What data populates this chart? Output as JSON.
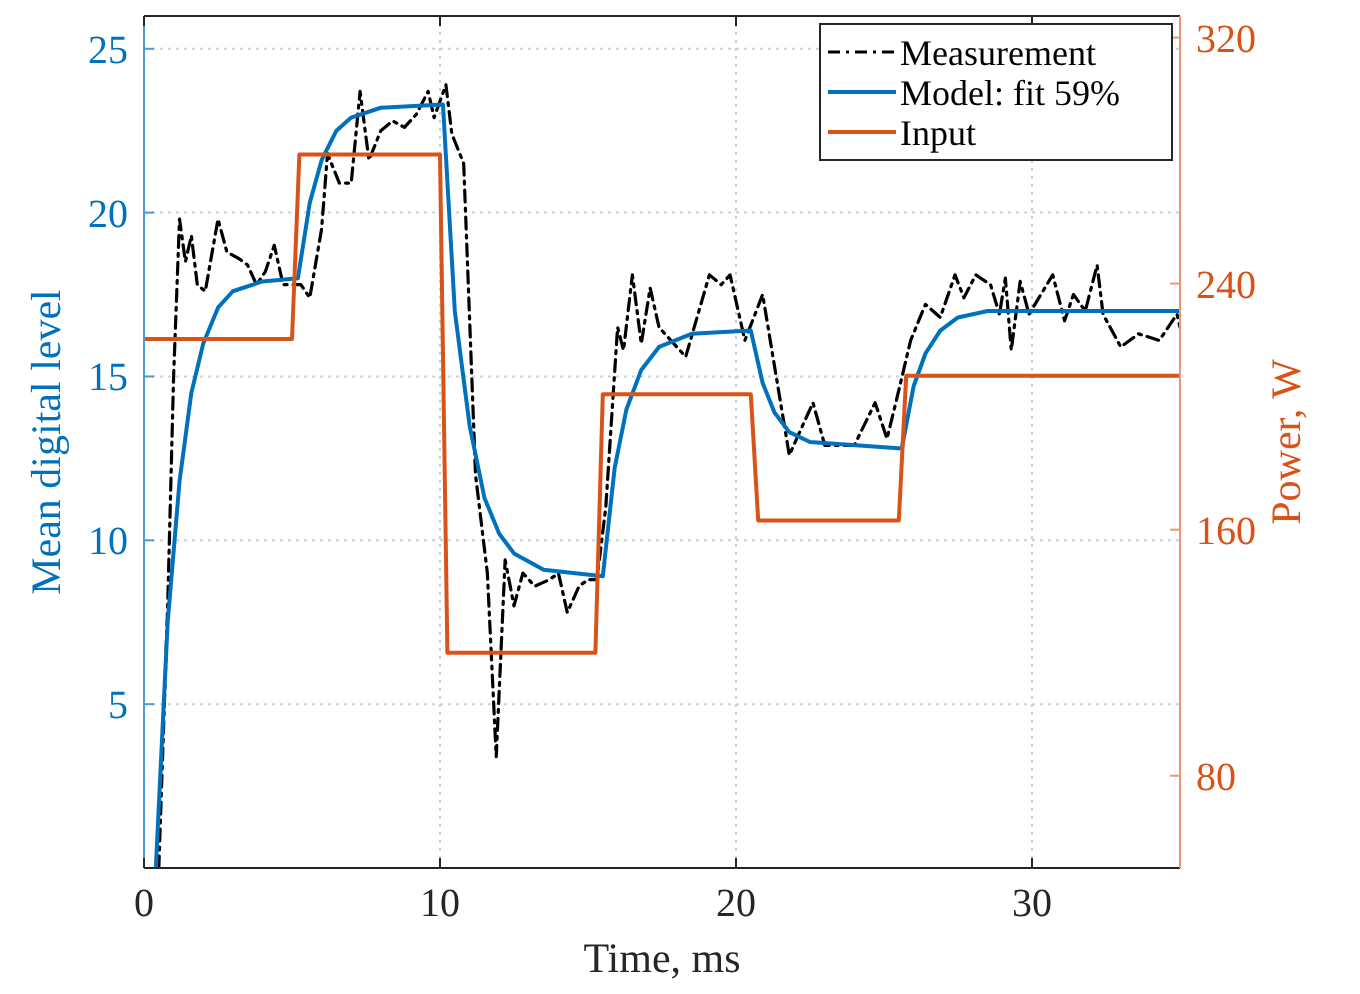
{
  "chart_data": {
    "type": "line",
    "xlabel": "Time, ms",
    "ylabel": "Mean digital level",
    "y2label": "Power, W",
    "xlim": [
      0,
      35
    ],
    "xticks": [
      0,
      10,
      20,
      30
    ],
    "ylim": [
      0,
      26
    ],
    "yticks": [
      5,
      10,
      15,
      20,
      25
    ],
    "y2lim": [
      50,
      327
    ],
    "y2ticks": [
      80,
      160,
      240,
      320
    ],
    "grid": true,
    "legend": "top right",
    "marker": "none",
    "series": [
      {
        "name": "Measurement",
        "color": "#000000",
        "line_style": "dashdot",
        "x": [
          0.5,
          0.8,
          1.0,
          1.2,
          1.4,
          1.6,
          1.8,
          2.07,
          2.5,
          2.8,
          3.2,
          3.5,
          3.8,
          4.1,
          4.4,
          4.7,
          5.0,
          5.3,
          5.6,
          6.0,
          6.2,
          6.6,
          7.0,
          7.3,
          7.6,
          8.0,
          8.4,
          8.8,
          9.2,
          9.6,
          9.8,
          10.2,
          10.4,
          10.8,
          11.2,
          11.4,
          11.6,
          11.9,
          12.2,
          12.5,
          12.8,
          13.2,
          13.7,
          14.0,
          14.3,
          14.7,
          15.0,
          15.3,
          15.6,
          16.0,
          16.2,
          16.5,
          16.8,
          17.1,
          17.4,
          18.3,
          19.1,
          19.5,
          19.8,
          20.3,
          20.9,
          21.8,
          22.6,
          23.0,
          24.0,
          24.7,
          25.1,
          25.4,
          25.9,
          26.4,
          26.9,
          27.4,
          27.7,
          28.1,
          28.6,
          28.9,
          29.1,
          29.3,
          29.6,
          29.9,
          30.7,
          31.1,
          31.4,
          31.8,
          32.2,
          32.4,
          33.0,
          33.6,
          34.3,
          34.9,
          35.0
        ],
        "values": [
          0,
          8,
          15,
          19.8,
          18.5,
          19.3,
          17.8,
          17.6,
          19.8,
          18.8,
          18.6,
          18.4,
          17.8,
          18.2,
          19.0,
          17.8,
          17.8,
          17.8,
          17.4,
          19.5,
          21.8,
          20.9,
          20.9,
          23.7,
          21.6,
          22.5,
          22.8,
          22.6,
          23.0,
          23.7,
          22.9,
          23.9,
          22.4,
          21.5,
          12,
          10.5,
          9,
          3.4,
          9.4,
          8.0,
          9.0,
          8.6,
          8.8,
          9.0,
          7.8,
          8.6,
          8.8,
          8.8,
          11,
          16.5,
          15.8,
          18.1,
          16.0,
          17.7,
          16.5,
          15.6,
          18.1,
          17.8,
          18.1,
          16.1,
          17.5,
          12.6,
          14.2,
          12.9,
          12.9,
          14.2,
          13.1,
          14.2,
          16.1,
          17.2,
          16.8,
          18.1,
          17.4,
          18.1,
          17.8,
          16.9,
          18.0,
          15.8,
          17.9,
          16.9,
          18.1,
          16.7,
          17.5,
          17.0,
          18.4,
          16.9,
          15.9,
          16.3,
          16.1,
          16.9,
          16.5
        ]
      },
      {
        "name": "Model: fit 59%",
        "color": "#0072bd",
        "line_style": "solid",
        "x": [
          0.4,
          0.8,
          1.2,
          1.6,
          2.0,
          2.5,
          3.0,
          4.0,
          5.2,
          5.6,
          6.0,
          6.5,
          7.0,
          8.0,
          10.1,
          10.5,
          11.0,
          11.5,
          12.0,
          12.5,
          13.5,
          15.5,
          15.9,
          16.3,
          16.8,
          17.4,
          18.5,
          20.5,
          20.9,
          21.3,
          21.8,
          22.5,
          25.6,
          26.0,
          26.4,
          26.9,
          27.5,
          28.5,
          35.0
        ],
        "values": [
          0,
          7.5,
          11.8,
          14.5,
          16.0,
          17.1,
          17.6,
          17.9,
          18.0,
          20.3,
          21.6,
          22.5,
          22.9,
          23.2,
          23.3,
          17.0,
          13.5,
          11.3,
          10.2,
          9.6,
          9.1,
          8.9,
          12.2,
          14.0,
          15.2,
          15.9,
          16.3,
          16.4,
          14.8,
          13.9,
          13.3,
          13.0,
          12.8,
          14.7,
          15.7,
          16.4,
          16.8,
          17.0,
          17.0
        ]
      },
      {
        "name": "Input",
        "color": "#d95319",
        "line_style": "solid",
        "axis": "y2",
        "x": [
          0,
          5,
          5.25,
          10,
          10.25,
          15.25,
          15.5,
          20.5,
          20.75,
          25.5,
          25.75,
          35
        ],
        "values": [
          222,
          222,
          282,
          282,
          120,
          120,
          204,
          204,
          163,
          163,
          210,
          210
        ]
      }
    ]
  }
}
